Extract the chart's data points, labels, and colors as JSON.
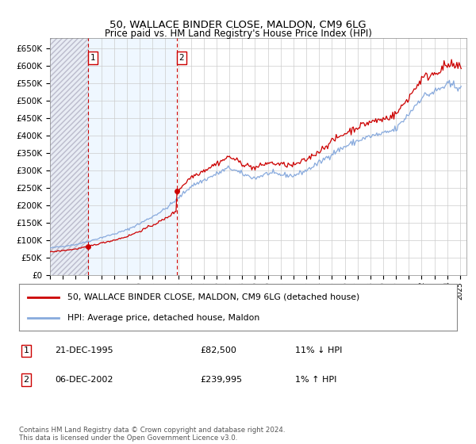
{
  "title": "50, WALLACE BINDER CLOSE, MALDON, CM9 6LG",
  "subtitle": "Price paid vs. HM Land Registry's House Price Index (HPI)",
  "legend_line1": "50, WALLACE BINDER CLOSE, MALDON, CM9 6LG (detached house)",
  "legend_line2": "HPI: Average price, detached house, Maldon",
  "annotation1_label": "1",
  "annotation1_date": "21-DEC-1995",
  "annotation1_price": "£82,500",
  "annotation1_hpi": "11% ↓ HPI",
  "annotation2_label": "2",
  "annotation2_date": "06-DEC-2002",
  "annotation2_price": "£239,995",
  "annotation2_hpi": "1% ↑ HPI",
  "footer": "Contains HM Land Registry data © Crown copyright and database right 2024.\nThis data is licensed under the Open Government Licence v3.0.",
  "sale1_year": 1995.97,
  "sale1_value": 82500,
  "sale2_year": 2002.92,
  "sale2_value": 239995,
  "hpi_color": "#88aadd",
  "price_color": "#cc0000",
  "sale_dot_color": "#cc0000",
  "annotation_box_color": "#cc0000",
  "grid_color": "#cccccc",
  "ylim": [
    0,
    680000
  ],
  "yticks": [
    0,
    50000,
    100000,
    150000,
    200000,
    250000,
    300000,
    350000,
    400000,
    450000,
    500000,
    550000,
    600000,
    650000
  ],
  "xlim_start": 1993.0,
  "xlim_end": 2025.5
}
